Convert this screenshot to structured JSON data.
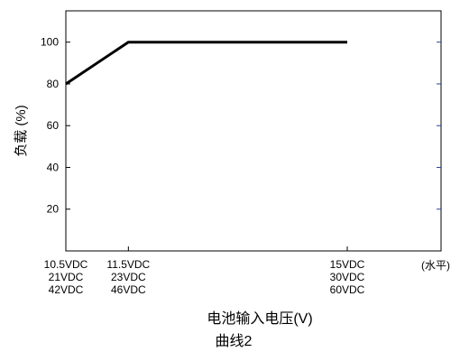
{
  "chart_data": {
    "type": "line",
    "title": "",
    "xlabel": "电池输入电压(V)",
    "ylabel": "负载 (%)",
    "caption": "曲线2",
    "x_note": "(水平)",
    "x": [
      10.5,
      11.5,
      15
    ],
    "x_tick_labels": [
      [
        "10.5VDC",
        "21VDC",
        "42VDC"
      ],
      [
        "11.5VDC",
        "23VDC",
        "46VDC"
      ],
      [
        "15VDC",
        "30VDC",
        "60VDC"
      ]
    ],
    "xlim": [
      10.5,
      16.5
    ],
    "ylim": [
      0,
      115
    ],
    "y_ticks": [
      20,
      40,
      60,
      80,
      100
    ],
    "y_tick_labels": [
      "20",
      "40",
      "60",
      "80",
      "100"
    ],
    "series": [
      {
        "x": [
          10.5,
          11.5,
          15
        ],
        "values": [
          80,
          100,
          100
        ]
      }
    ],
    "grid": false,
    "line_color": "#000000",
    "right_tick_color": "#2a3fa0"
  }
}
